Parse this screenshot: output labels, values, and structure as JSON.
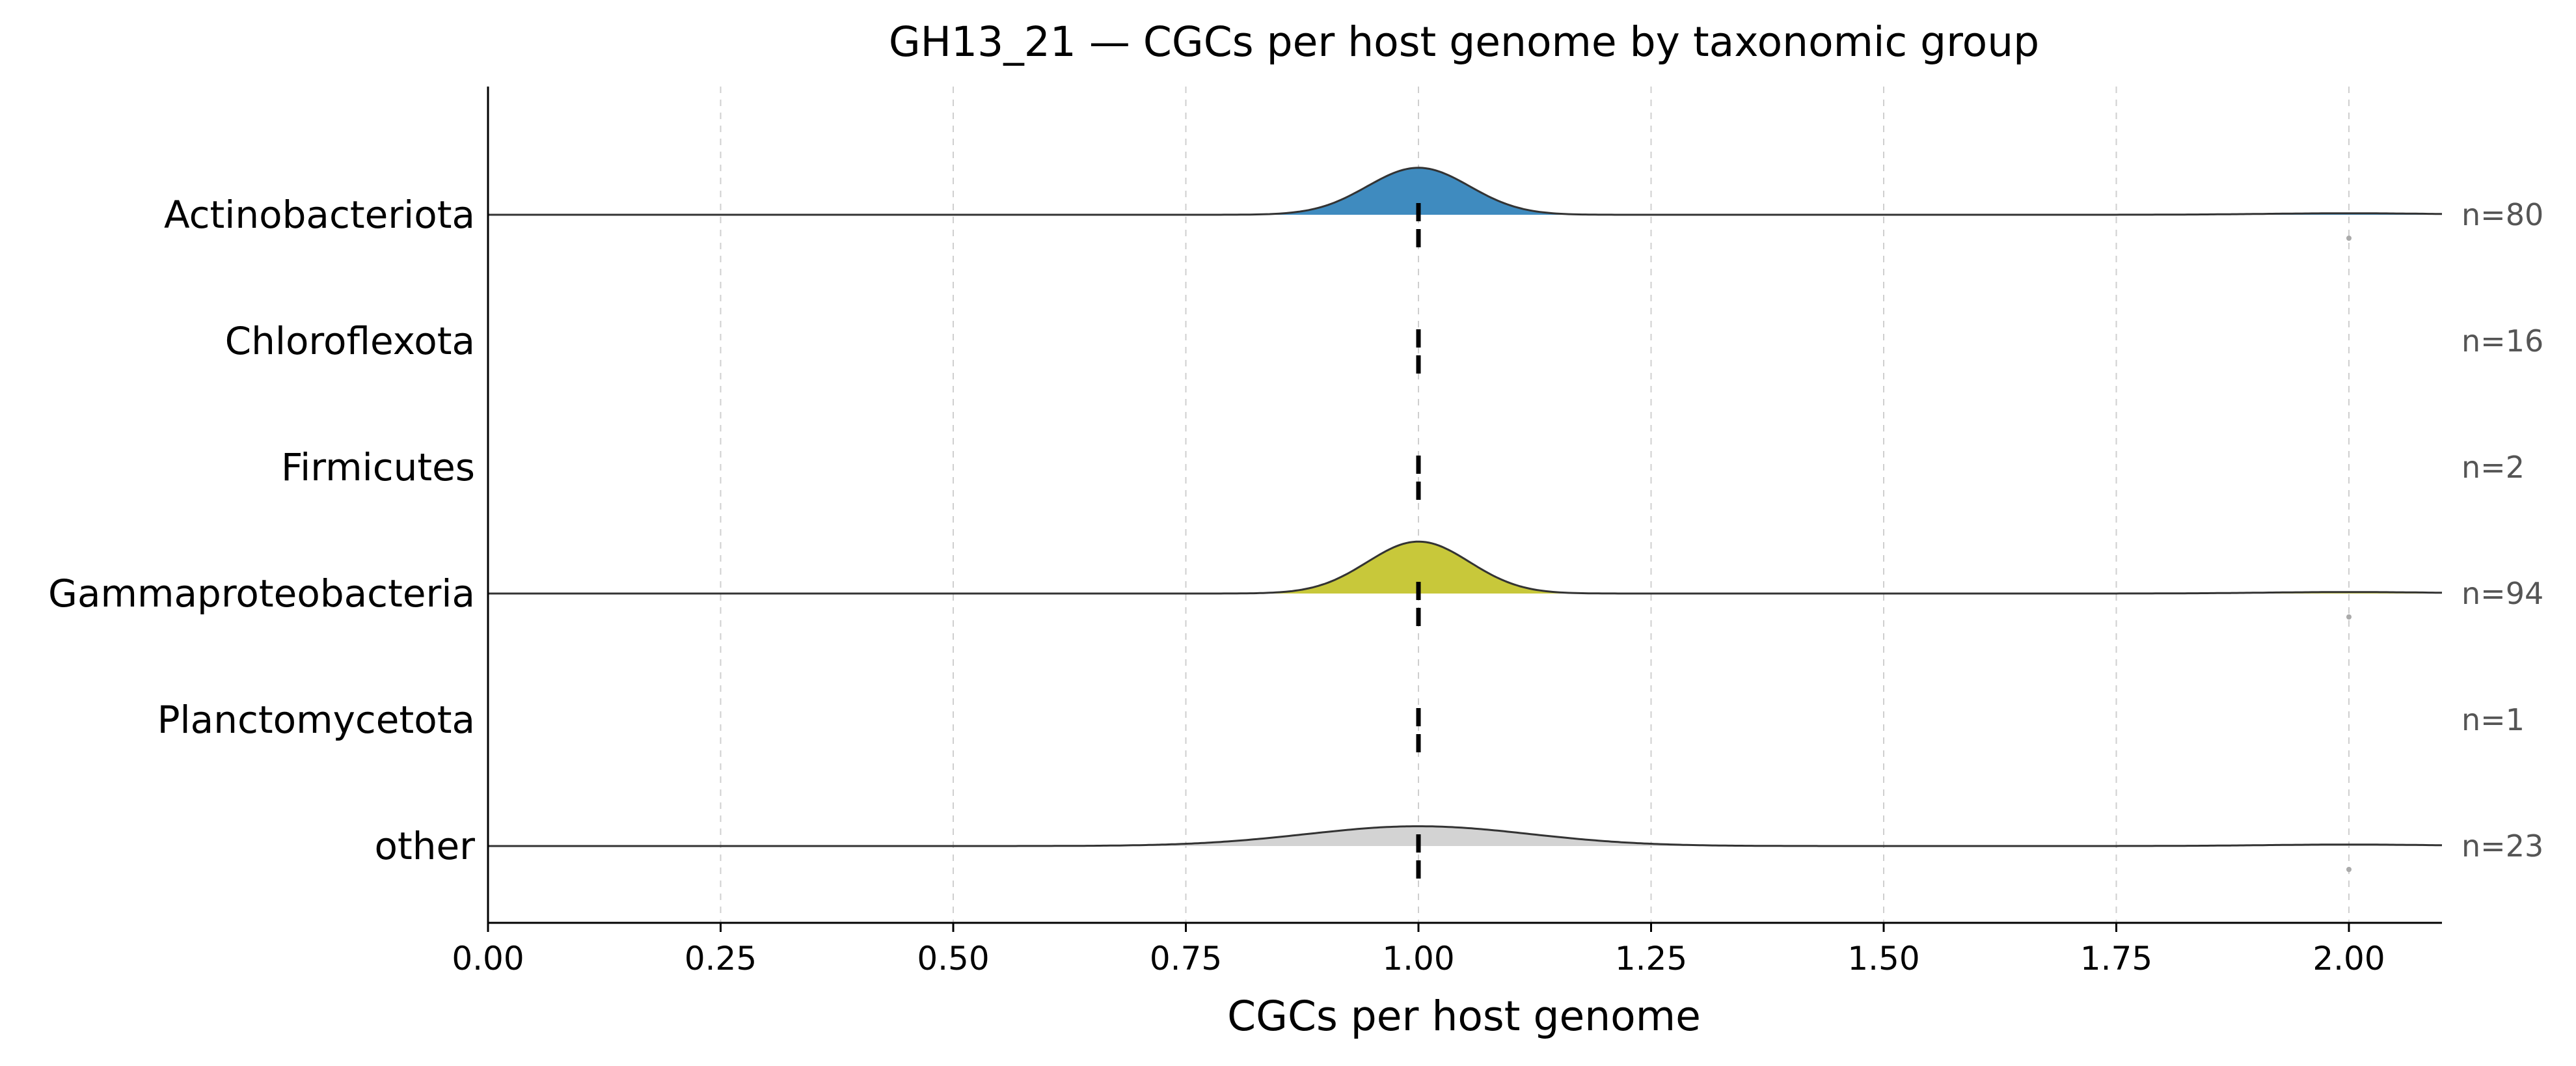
{
  "chart_data": {
    "type": "ridgeline",
    "title": "GH13_21 — CGCs per host genome by taxonomic group",
    "xlabel": "CGCs per host genome",
    "ylabel": "",
    "xlim": [
      0.0,
      2.1
    ],
    "xticks": [
      0.0,
      0.25,
      0.5,
      0.75,
      1.0,
      1.25,
      1.5,
      1.75,
      2.0
    ],
    "xtick_labels": [
      "0.00",
      "0.25",
      "0.50",
      "0.75",
      "1.00",
      "1.25",
      "1.50",
      "1.75",
      "2.00"
    ],
    "grid": "vertical dashed",
    "median_marker": "dashed vertical line",
    "groups": [
      {
        "label": "Actinobacteriota",
        "n_label": "n=80",
        "n": 80,
        "median": 1.0,
        "has_density": true,
        "color": "#3f8bbf",
        "center": 1.0,
        "bandwidth": 0.055,
        "peak_height": 0.38,
        "outliers": [
          2.0
        ]
      },
      {
        "label": "Chloroflexota",
        "n_label": "n=16",
        "n": 16,
        "median": 1.0,
        "has_density": false,
        "color": "",
        "outliers": []
      },
      {
        "label": "Firmicutes",
        "n_label": "n=2",
        "n": 2,
        "median": 1.0,
        "has_density": false,
        "color": "",
        "outliers": []
      },
      {
        "label": "Gammaproteobacteria",
        "n_label": "n=94",
        "n": 94,
        "median": 1.0,
        "has_density": true,
        "color": "#c8c83a",
        "center": 1.0,
        "bandwidth": 0.055,
        "peak_height": 0.42,
        "outliers": [
          2.0
        ]
      },
      {
        "label": "Planctomycetota",
        "n_label": "n=1",
        "n": 1,
        "median": 1.0,
        "has_density": false,
        "color": "",
        "outliers": []
      },
      {
        "label": "other",
        "n_label": "n=23",
        "n": 23,
        "median": 1.0,
        "has_density": true,
        "color": "#d3d3d3",
        "center": 1.0,
        "bandwidth": 0.12,
        "peak_height": 0.16,
        "outliers": [
          2.0
        ]
      }
    ]
  }
}
